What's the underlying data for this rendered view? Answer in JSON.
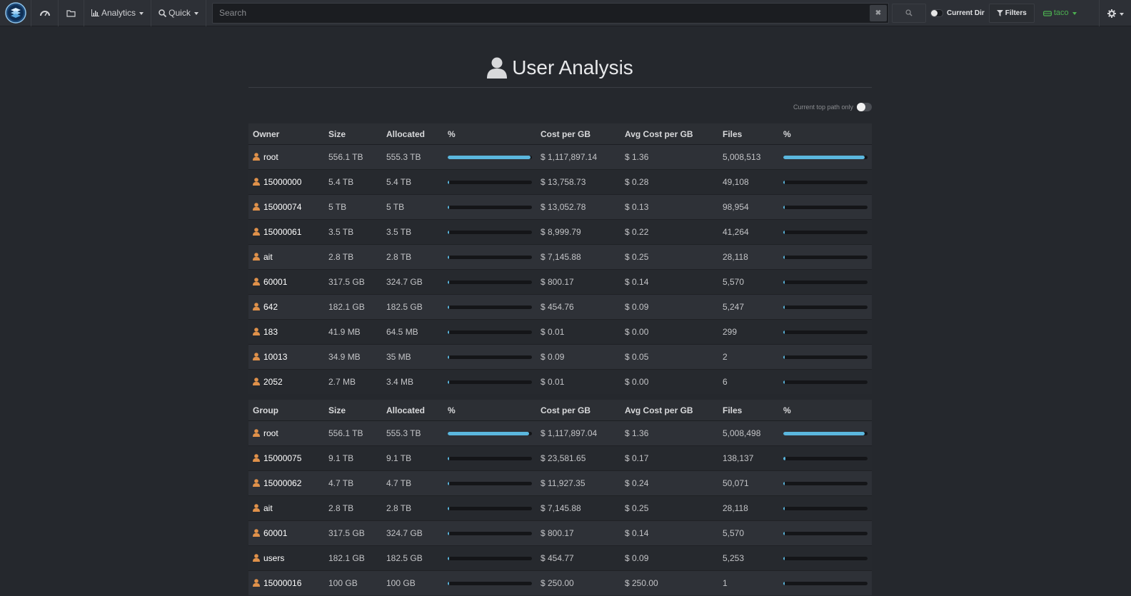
{
  "nav": {
    "analytics_label": "Analytics",
    "quick_label": "Quick",
    "search_placeholder": "Search",
    "clear_label": "✖",
    "current_dir_label": "Current Dir",
    "filters_label": "Filters",
    "user_label": "taco",
    "user_color": "#4cb050"
  },
  "page": {
    "title": "User Analysis",
    "toggle_label": "Current top path only",
    "accent": "#5bb7de"
  },
  "owner_table": {
    "headers": [
      "Owner",
      "Size",
      "Allocated",
      "%",
      "Cost per GB",
      "Avg Cost per GB",
      "Files",
      "%"
    ],
    "rows": [
      {
        "name": "root",
        "size": "556.1 TB",
        "allocated": "555.3 TB",
        "pct_size": 0.98,
        "cost": "$ 1,117,897.14",
        "avg_cost": "$ 1.36",
        "files": "5,008,513",
        "pct_files": 0.97
      },
      {
        "name": "15000000",
        "size": "5.4 TB",
        "allocated": "5.4 TB",
        "pct_size": 0.01,
        "cost": "$ 13,758.73",
        "avg_cost": "$ 0.28",
        "files": "49,108",
        "pct_files": 0.01
      },
      {
        "name": "15000074",
        "size": "5 TB",
        "allocated": "5 TB",
        "pct_size": 0.01,
        "cost": "$ 13,052.78",
        "avg_cost": "$ 0.13",
        "files": "98,954",
        "pct_files": 0.02
      },
      {
        "name": "15000061",
        "size": "3.5 TB",
        "allocated": "3.5 TB",
        "pct_size": 0.006,
        "cost": "$ 8,999.79",
        "avg_cost": "$ 0.22",
        "files": "41,264",
        "pct_files": 0.008
      },
      {
        "name": "ait",
        "size": "2.8 TB",
        "allocated": "2.8 TB",
        "pct_size": 0.005,
        "cost": "$ 7,145.88",
        "avg_cost": "$ 0.25",
        "files": "28,118",
        "pct_files": 0.005
      },
      {
        "name": "60001",
        "size": "317.5 GB",
        "allocated": "324.7 GB",
        "pct_size": 0.0,
        "cost": "$ 800.17",
        "avg_cost": "$ 0.14",
        "files": "5,570",
        "pct_files": 0.0
      },
      {
        "name": "642",
        "size": "182.1 GB",
        "allocated": "182.5 GB",
        "pct_size": 0.0,
        "cost": "$ 454.76",
        "avg_cost": "$ 0.09",
        "files": "5,247",
        "pct_files": 0.0
      },
      {
        "name": "183",
        "size": "41.9 MB",
        "allocated": "64.5 MB",
        "pct_size": 0.0,
        "cost": "$ 0.01",
        "avg_cost": "$ 0.00",
        "files": "299",
        "pct_files": 0.0
      },
      {
        "name": "10013",
        "size": "34.9 MB",
        "allocated": "35 MB",
        "pct_size": 0.0,
        "cost": "$ 0.09",
        "avg_cost": "$ 0.05",
        "files": "2",
        "pct_files": 0.0
      },
      {
        "name": "2052",
        "size": "2.7 MB",
        "allocated": "3.4 MB",
        "pct_size": 0.0,
        "cost": "$ 0.01",
        "avg_cost": "$ 0.00",
        "files": "6",
        "pct_files": 0.0
      }
    ]
  },
  "group_table": {
    "headers": [
      "Group",
      "Size",
      "Allocated",
      "%",
      "Cost per GB",
      "Avg Cost per GB",
      "Files",
      "%"
    ],
    "rows": [
      {
        "name": "root",
        "size": "556.1 TB",
        "allocated": "555.3 TB",
        "pct_size": 0.97,
        "cost": "$ 1,117,897.04",
        "avg_cost": "$ 1.36",
        "files": "5,008,498",
        "pct_files": 0.97
      },
      {
        "name": "15000075",
        "size": "9.1 TB",
        "allocated": "9.1 TB",
        "pct_size": 0.016,
        "cost": "$ 23,581.65",
        "avg_cost": "$ 0.17",
        "files": "138,137",
        "pct_files": 0.027
      },
      {
        "name": "15000062",
        "size": "4.7 TB",
        "allocated": "4.7 TB",
        "pct_size": 0.008,
        "cost": "$ 11,927.35",
        "avg_cost": "$ 0.24",
        "files": "50,071",
        "pct_files": 0.01
      },
      {
        "name": "ait",
        "size": "2.8 TB",
        "allocated": "2.8 TB",
        "pct_size": 0.005,
        "cost": "$ 7,145.88",
        "avg_cost": "$ 0.25",
        "files": "28,118",
        "pct_files": 0.005
      },
      {
        "name": "60001",
        "size": "317.5 GB",
        "allocated": "324.7 GB",
        "pct_size": 0.0,
        "cost": "$ 800.17",
        "avg_cost": "$ 0.14",
        "files": "5,570",
        "pct_files": 0.0
      },
      {
        "name": "users",
        "size": "182.1 GB",
        "allocated": "182.5 GB",
        "pct_size": 0.0,
        "cost": "$ 454.77",
        "avg_cost": "$ 0.09",
        "files": "5,253",
        "pct_files": 0.0
      },
      {
        "name": "15000016",
        "size": "100 GB",
        "allocated": "100 GB",
        "pct_size": 0.0,
        "cost": "$ 250.00",
        "avg_cost": "$ 250.00",
        "files": "1",
        "pct_files": 0.0
      }
    ]
  }
}
